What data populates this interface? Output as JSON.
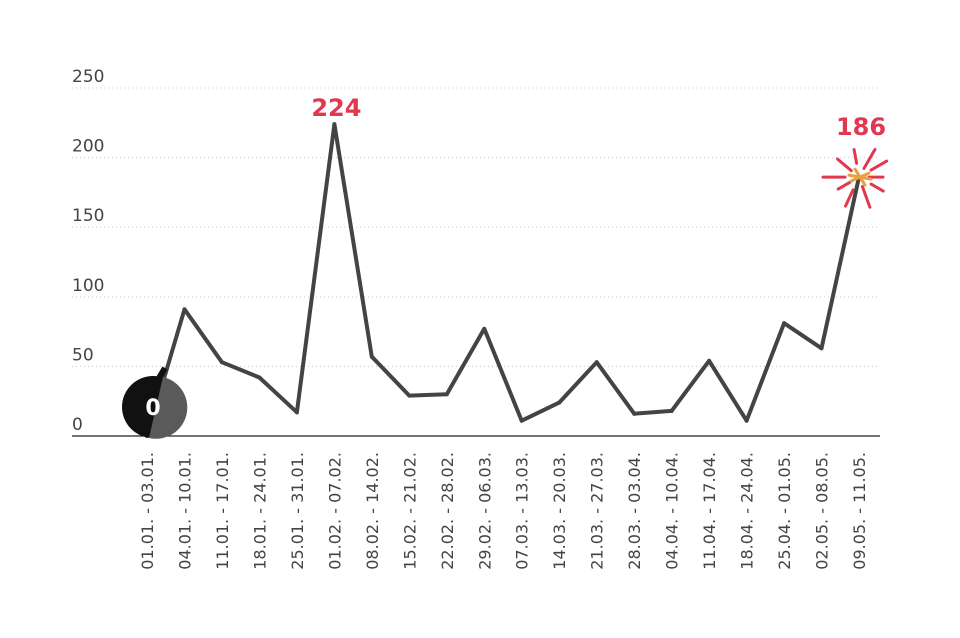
{
  "chart_data": {
    "type": "line",
    "title": "",
    "xlabel": "",
    "ylabel": "",
    "ylim": [
      0,
      250
    ],
    "yticks": [
      0,
      50,
      100,
      150,
      200,
      250
    ],
    "grid": true,
    "categories": [
      "01.01. - 03.01.",
      "04.01. - 10.01.",
      "11.01. - 17.01.",
      "18.01. - 24.01.",
      "25.01. - 31.01.",
      "01.02. - 07.02.",
      "08.02. - 14.02.",
      "15.02. - 21.02.",
      "22.02. - 28.02.",
      "29.02. - 06.03.",
      "07.03. - 13.03.",
      "14.03. - 20.03.",
      "21.03. - 27.03.",
      "28.03. - 03.04.",
      "04.04. - 10.04.",
      "11.04. - 17.04.",
      "18.04. - 24.04.",
      "25.04. - 01.05.",
      "02.05. - 08.05.",
      "09.05. - 11.05."
    ],
    "series": [
      {
        "values": [
          0,
          91,
          53,
          42,
          17,
          224,
          57,
          29,
          30,
          77,
          11,
          24,
          53,
          16,
          18,
          54,
          11,
          81,
          63,
          186
        ]
      }
    ],
    "annotations": [
      {
        "index": 0,
        "text": "0",
        "style": "bomb"
      },
      {
        "index": 5,
        "text": "224",
        "style": "peak"
      },
      {
        "index": 19,
        "text": "186",
        "style": "explosion"
      }
    ],
    "colors": {
      "line": "#444444",
      "accent": "#e0384f",
      "spark": "#e8a040",
      "bomb": "#111111"
    }
  }
}
